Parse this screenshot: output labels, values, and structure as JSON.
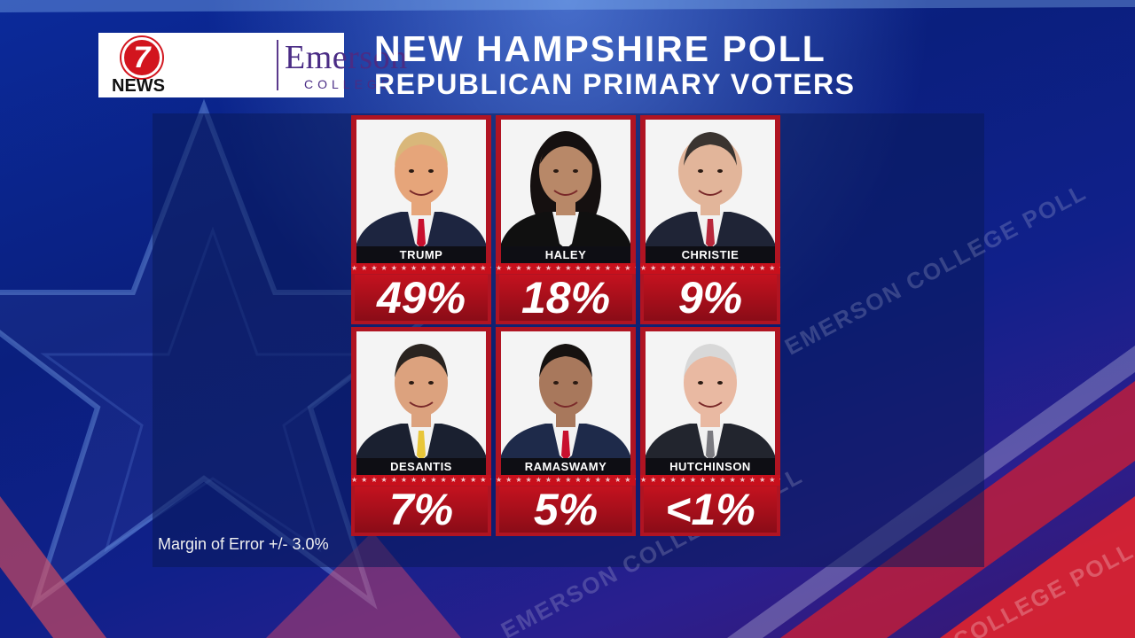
{
  "header": {
    "logo_number": "7",
    "logo_news": "NEWS",
    "logo_brand": "Emerson",
    "logo_subbrand": "COLLEGE",
    "title": "NEW HAMPSHIRE POLL",
    "subtitle": "REPUBLICAN PRIMARY VOTERS"
  },
  "footnote": "Margin of Error +/- 3.0%",
  "watermark": [
    "EMERSON COLLEGE POLL",
    "EMERSON COLLEGE POLL",
    "COLLEGE POLL"
  ],
  "colors": {
    "card_red": "#b01422",
    "name_bar": "#0e0e14",
    "text": "#ffffff"
  },
  "chart_data": {
    "type": "bar",
    "title": "NEW HAMPSHIRE POLL",
    "subtitle": "REPUBLICAN PRIMARY VOTERS",
    "categories": [
      "TRUMP",
      "HALEY",
      "CHRISTIE",
      "DESANTIS",
      "RAMASWAMY",
      "HUTCHINSON"
    ],
    "labels": [
      "49%",
      "18%",
      "9%",
      "7%",
      "5%",
      "<1%"
    ],
    "values": [
      49,
      18,
      9,
      7,
      5,
      0.5
    ],
    "unit": "%",
    "annotation": "Margin of Error +/- 3.0%"
  }
}
